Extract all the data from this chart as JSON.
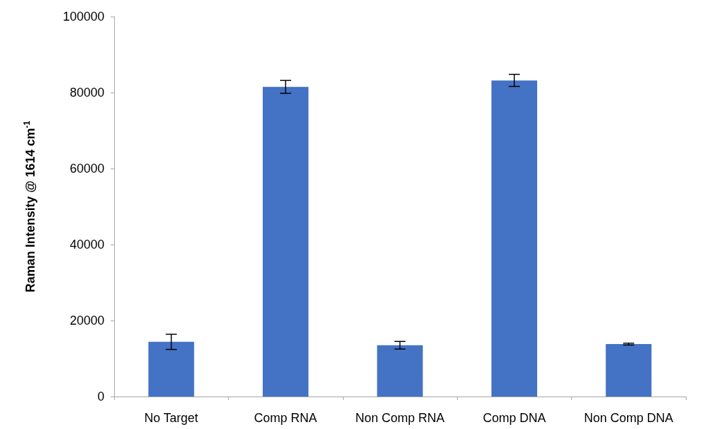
{
  "chart_data": {
    "type": "bar",
    "ylabel": "Raman Intensity @ 1614 cm$^{-1}$",
    "categories": [
      "No Target",
      "Comp RNA",
      "Non Comp RNA",
      "Comp DNA",
      "Non Comp DNA"
    ],
    "values": [
      14400,
      81500,
      13500,
      83200,
      13800
    ],
    "errors": [
      2000,
      1700,
      1000,
      1600,
      250
    ],
    "color": "#4472c4",
    "ylim": [
      0,
      100000
    ],
    "yticks": [
      0,
      20000,
      40000,
      60000,
      80000,
      100000
    ],
    "grid": false
  }
}
